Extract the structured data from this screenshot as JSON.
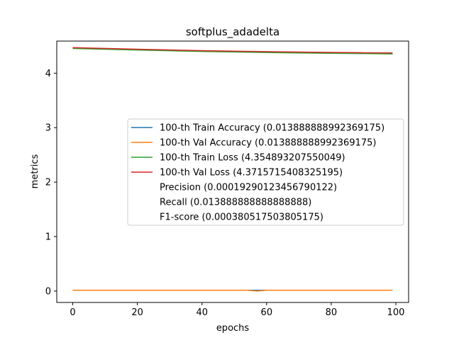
{
  "chart_data": {
    "type": "line",
    "title": "softplus_adadelta",
    "xlabel": "epochs",
    "ylabel": "metrics",
    "xlim": [
      -4.95,
      103.95
    ],
    "ylim": [
      -0.21,
      4.59
    ],
    "xticks": [
      0,
      20,
      40,
      60,
      80,
      100
    ],
    "yticks": [
      0,
      1,
      2,
      3,
      4
    ],
    "grid": false,
    "legend_position": "center-right",
    "series": [
      {
        "name": "100-th Train Accuracy (0.013888888992369175)",
        "color": "#1f77b4",
        "x": [
          0,
          10,
          20,
          30,
          40,
          50,
          60,
          70,
          80,
          90,
          99
        ],
        "y": [
          0.0139,
          0.0139,
          0.0139,
          0.0139,
          0.0139,
          0.0139,
          0.0139,
          0.0139,
          0.0139,
          0.0139,
          0.0139
        ]
      },
      {
        "name": "100-th Val Accuracy (0.013888888992369175)",
        "color": "#ff7f0e",
        "x": [
          0,
          10,
          20,
          30,
          40,
          50,
          54,
          57,
          60,
          70,
          80,
          90,
          99
        ],
        "y": [
          0.0139,
          0.0139,
          0.0139,
          0.0139,
          0.0139,
          0.0139,
          0.0139,
          0.0,
          0.0139,
          0.0139,
          0.0139,
          0.0139,
          0.0139
        ]
      },
      {
        "name": "100-th Train Loss (4.354893207550049)",
        "color": "#2ca02c",
        "x": [
          0,
          10,
          20,
          30,
          40,
          50,
          60,
          70,
          80,
          90,
          99
        ],
        "y": [
          4.455,
          4.44,
          4.425,
          4.412,
          4.4,
          4.39,
          4.38,
          4.372,
          4.365,
          4.36,
          4.355
        ]
      },
      {
        "name": "100-th Val Loss (4.3715715408325195)",
        "color": "#d62728",
        "x": [
          0,
          10,
          20,
          30,
          40,
          50,
          60,
          70,
          80,
          90,
          99
        ],
        "y": [
          4.47,
          4.455,
          4.44,
          4.427,
          4.415,
          4.405,
          4.396,
          4.389,
          4.382,
          4.376,
          4.372
        ]
      }
    ],
    "legend_entries": [
      {
        "label": "100-th Train Accuracy (0.013888888992369175)",
        "color": "#1f77b4"
      },
      {
        "label": "100-th Val Accuracy (0.013888888992369175)",
        "color": "#ff7f0e"
      },
      {
        "label": "100-th Train Loss (4.354893207550049)",
        "color": "#2ca02c"
      },
      {
        "label": "100-th Val Loss (4.3715715408325195)",
        "color": "#d62728"
      },
      {
        "label": "Precision (0.00019290123456790122)",
        "color": ""
      },
      {
        "label": "Recall (0.013888888888888888)",
        "color": ""
      },
      {
        "label": "F1-score (0.000380517503805175)",
        "color": ""
      }
    ]
  }
}
